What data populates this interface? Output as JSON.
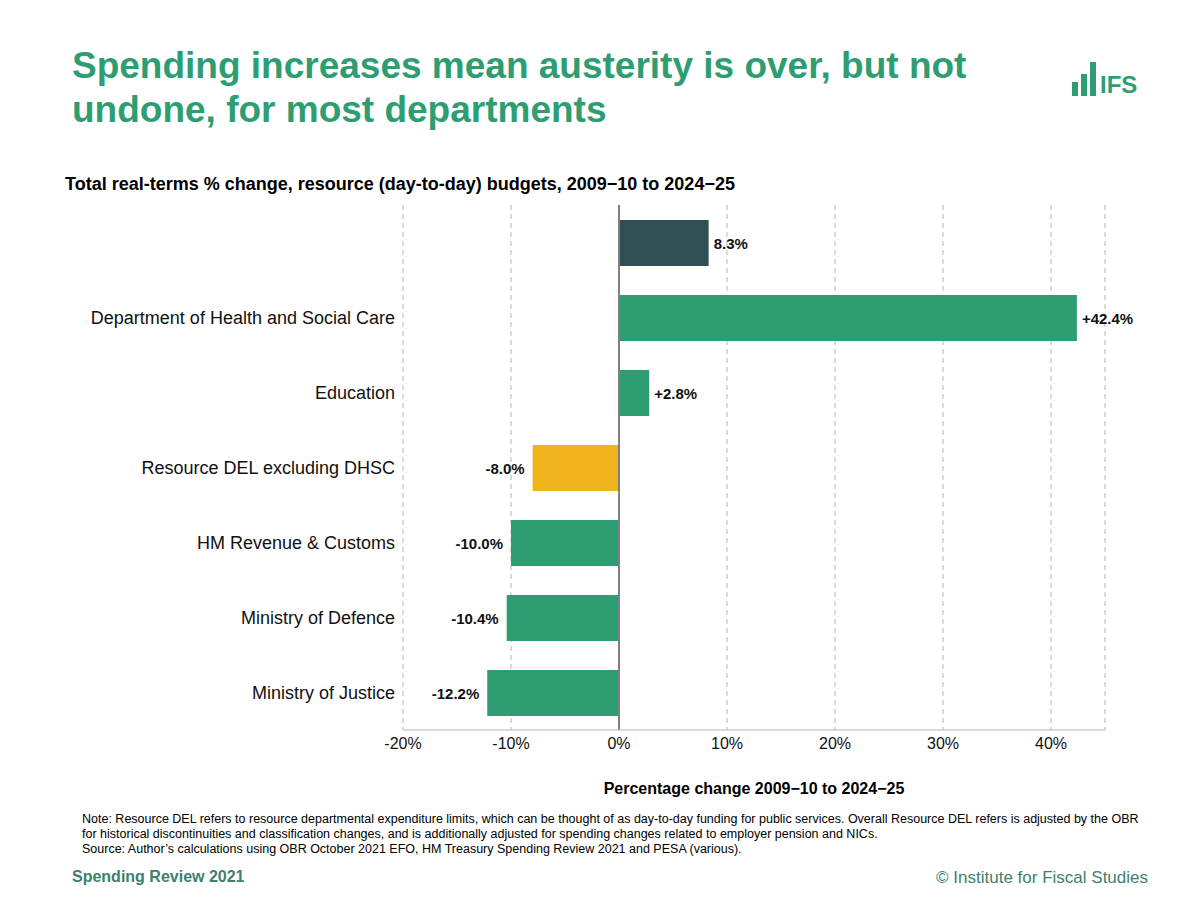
{
  "chart_data": {
    "type": "bar",
    "orientation": "horizontal",
    "title": "Spending increases mean austerity is over, but not undone, for most departments",
    "subtitle": "Total real-terms % change, resource (day-to-day) budgets, 2009−10 to 2024−25",
    "x_label": "Percentage change 2009−10 to 2024−25",
    "categories": [
      null,
      "Department of Health and Social Care",
      "Education",
      "Resource DEL excluding DHSC",
      "HM Revenue & Customs",
      "Ministry of Defence",
      "Ministry of Justice"
    ],
    "values": [
      8.3,
      42.4,
      2.8,
      -8.0,
      -10.0,
      -10.4,
      -12.2
    ],
    "value_labels": [
      "8.3%",
      "+42.4%",
      "+2.8%",
      "-8.0%",
      "-10.0%",
      "-10.4%",
      "-12.2%"
    ],
    "colors": [
      "#2f4f55",
      "#2e9e72",
      "#2e9e72",
      "#efb31b",
      "#2e9e72",
      "#2e9e72",
      "#2e9e72"
    ],
    "data_labels": true,
    "grid": true,
    "xlim": [
      -20,
      45
    ],
    "xticks": [
      {
        "value": -20,
        "label": "-20%"
      },
      {
        "value": -10,
        "label": "-10%"
      },
      {
        "value": 0,
        "label": "0%"
      },
      {
        "value": 10,
        "label": "10%"
      },
      {
        "value": 20,
        "label": "20%"
      },
      {
        "value": 30,
        "label": "30%"
      },
      {
        "value": 40,
        "label": "40%"
      }
    ],
    "note": "Note: Resource DEL refers to resource departmental expenditure limits, which can be thought of as day-to-day funding for public services. Overall Resource DEL refers is adjusted by the OBR for historical discontinuities and classification changes, and is additionally adjusted for spending changes related to employer pension and NICs.",
    "source": "Source: Author’s calculations using OBR October 2021 EFO, HM Treasury Spending Review 2021 and PESA (various).",
    "footer": [
      "Spending Review 2021",
      "© Institute for Fiscal Studies"
    ],
    "logo": "IFS"
  }
}
